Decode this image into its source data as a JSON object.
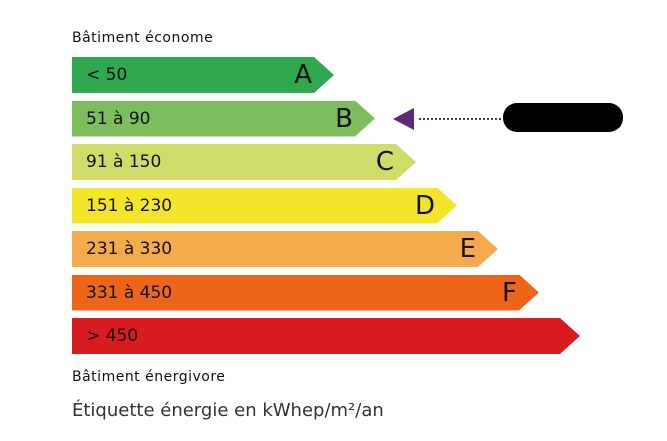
{
  "top_label": "Bâtiment économe",
  "bottom_label": "Bâtiment énergivore",
  "unit_label": "Étiquette énergie en kWhep/m²/an",
  "classes": [
    {
      "range": "< 50",
      "letter": "A",
      "color": "#2fa84f"
    },
    {
      "range": "51 à 90",
      "letter": "B",
      "color": "#7dbd5c"
    },
    {
      "range": "91 à 150",
      "letter": "C",
      "color": "#cfdc68"
    },
    {
      "range": "151 à 230",
      "letter": "D",
      "color": "#f2e52a"
    },
    {
      "range": "231 à 330",
      "letter": "E",
      "color": "#f5ab4c"
    },
    {
      "range": "331 à 450",
      "letter": "F",
      "color": "#ec6519"
    },
    {
      "range": "> 450",
      "letter": "",
      "color": "#d91b20"
    }
  ],
  "indicator": {
    "class": "B",
    "color": "#5b2a7a"
  }
}
